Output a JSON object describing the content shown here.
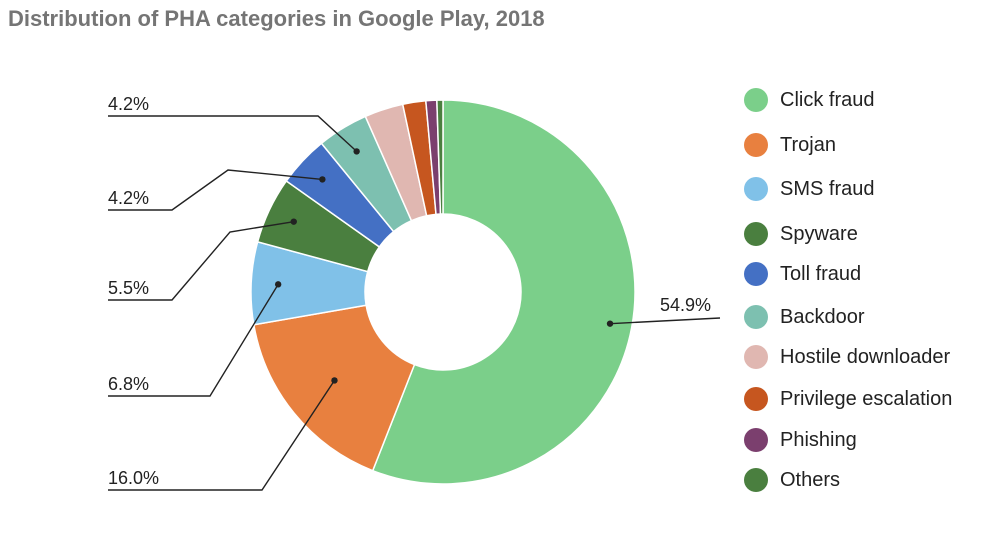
{
  "title": "Distribution of PHA categories in Google Play, 2018",
  "chart_data": {
    "type": "pie",
    "donut": true,
    "title": "Distribution of PHA categories in Google Play, 2018",
    "legend_position": "right",
    "slices": [
      {
        "name": "Click fraud",
        "value": 54.9,
        "label": "54.9%",
        "color": "#7bcf8a"
      },
      {
        "name": "Trojan",
        "value": 16.0,
        "label": "16.0%",
        "color": "#e8803f"
      },
      {
        "name": "SMS fraud",
        "value": 6.8,
        "label": "6.8%",
        "color": "#80c1e8"
      },
      {
        "name": "Spyware",
        "value": 5.5,
        "label": "5.5%",
        "color": "#4a7f3f"
      },
      {
        "name": "Toll fraud",
        "value": 4.2,
        "label": "4.2%",
        "color": "#4470c4"
      },
      {
        "name": "Backdoor",
        "value": 4.2,
        "label": "4.2%",
        "color": "#7dc0b0"
      },
      {
        "name": "Hostile downloader",
        "value": 3.2,
        "label": "",
        "color": "#e0b7b1"
      },
      {
        "name": "Privilege escalation",
        "value": 1.9,
        "label": "",
        "color": "#c6561f"
      },
      {
        "name": "Phishing",
        "value": 0.9,
        "label": "",
        "color": "#7b3f6e"
      },
      {
        "name": "Others",
        "value": 0.5,
        "label": "",
        "color": "#4a7f3f"
      }
    ]
  }
}
